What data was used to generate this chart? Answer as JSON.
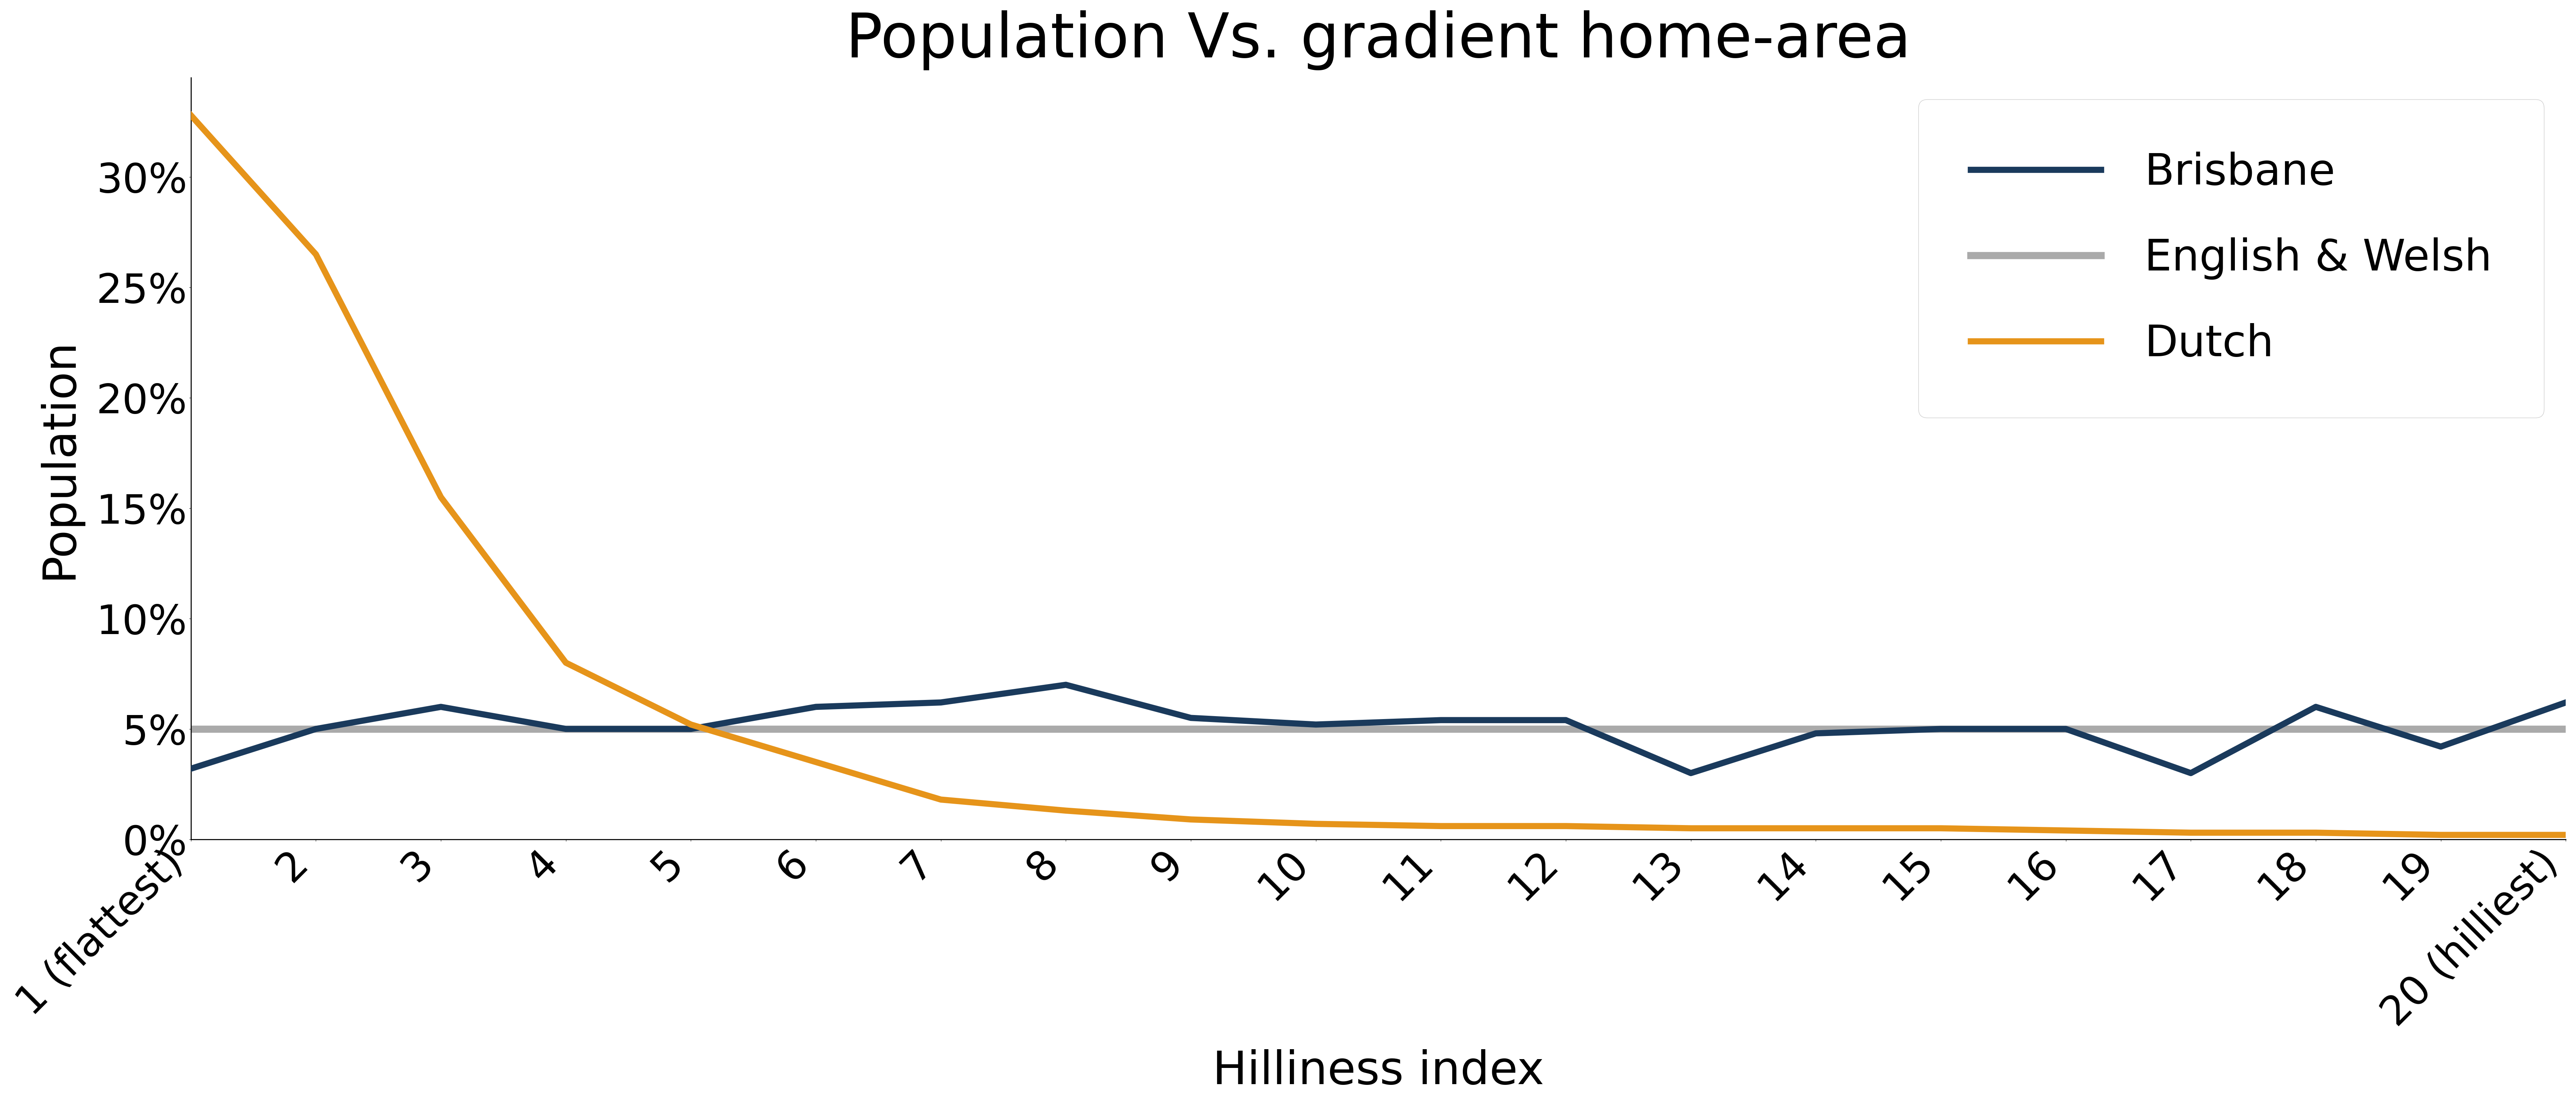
{
  "title": "Population Vs. gradient home-area",
  "xlabel": "Hilliness index",
  "ylabel": "Population",
  "x_labels": [
    "1 (flattest)",
    "2",
    "3",
    "4",
    "5",
    "6",
    "7",
    "8",
    "9",
    "10",
    "11",
    "12",
    "13",
    "14",
    "15",
    "16",
    "17",
    "18",
    "19",
    "20 (hilliest)"
  ],
  "x_values": [
    1,
    2,
    3,
    4,
    5,
    6,
    7,
    8,
    9,
    10,
    11,
    12,
    13,
    14,
    15,
    16,
    17,
    18,
    19,
    20
  ],
  "brisbane": [
    0.032,
    0.05,
    0.06,
    0.05,
    0.05,
    0.06,
    0.062,
    0.07,
    0.055,
    0.052,
    0.054,
    0.054,
    0.03,
    0.048,
    0.05,
    0.05,
    0.03,
    0.06,
    0.042,
    0.062
  ],
  "english_welsh": [
    0.05,
    0.05,
    0.05,
    0.05,
    0.05,
    0.05,
    0.05,
    0.05,
    0.05,
    0.05,
    0.05,
    0.05,
    0.05,
    0.05,
    0.05,
    0.05,
    0.05,
    0.05,
    0.05,
    0.05
  ],
  "dutch": [
    0.328,
    0.265,
    0.155,
    0.08,
    0.052,
    0.035,
    0.018,
    0.013,
    0.009,
    0.007,
    0.006,
    0.006,
    0.005,
    0.005,
    0.005,
    0.004,
    0.003,
    0.003,
    0.002,
    0.002
  ],
  "brisbane_color": "#1a3a5c",
  "english_welsh_color": "#aaaaaa",
  "dutch_color": "#e6941a",
  "ylim": [
    0.0,
    0.345
  ],
  "yticks": [
    0.0,
    0.05,
    0.1,
    0.15,
    0.2,
    0.25,
    0.3
  ],
  "title_fontsize": 120,
  "label_fontsize": 90,
  "tick_fontsize": 80,
  "legend_fontsize": 85,
  "line_width": 12.0,
  "english_welsh_lw": 14.0,
  "figsize": [
    70,
    30
  ],
  "dpi": 100
}
